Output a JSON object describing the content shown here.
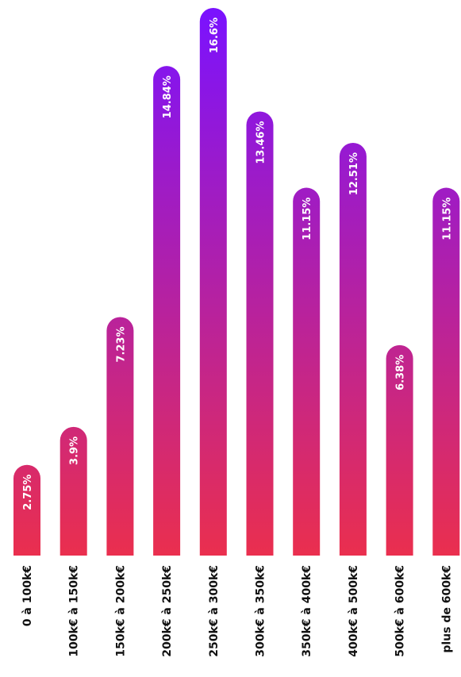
{
  "chart_data": {
    "type": "bar",
    "orientation": "vertical",
    "categories": [
      "0 à 100k€",
      "100k€ à 150k€",
      "150k€ à 200k€",
      "200k€ à 250k€",
      "250k€ à 300k€",
      "300k€ à 350k€",
      "350k€ à 400k€",
      "400k€ à 500k€",
      "500k€ à 600k€",
      "plus de 600k€"
    ],
    "values": [
      2.75,
      3.9,
      7.23,
      14.84,
      16.6,
      13.46,
      11.15,
      12.51,
      6.38,
      11.15
    ],
    "value_labels": [
      "2.75%",
      "3.9%",
      "7.23%",
      "14.84%",
      "16.6%",
      "13.46%",
      "11.15%",
      "12.51%",
      "6.38%",
      "11.15%"
    ],
    "unit": "%",
    "ylim": [
      0,
      16.6
    ],
    "grid": false,
    "legend": "none",
    "colors": {
      "bar_top": "#7a12ff",
      "bar_bottom": "#ea2f4e",
      "value_text": "#ffffff",
      "category_text": "#111111",
      "background": "#ffffff"
    }
  }
}
